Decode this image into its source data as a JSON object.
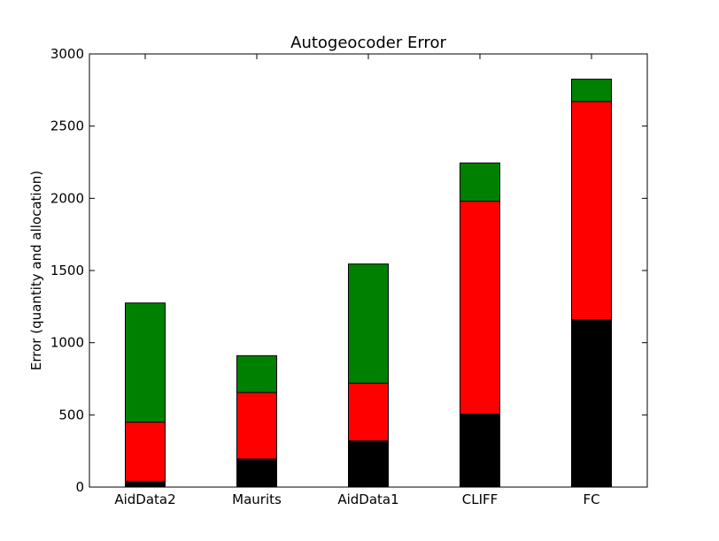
{
  "chart_data": {
    "type": "bar",
    "stacked": true,
    "title": "Autogeocoder Error",
    "xlabel": "",
    "ylabel": "Error (quantity and allocation)",
    "categories": [
      "AidData2",
      "Maurits",
      "AidData1",
      "CLIFF",
      "FC"
    ],
    "series": [
      {
        "color": "#000000",
        "values": [
          40,
          195,
          320,
          505,
          1160
        ]
      },
      {
        "color": "#ff0000",
        "values": [
          410,
          460,
          400,
          1475,
          1510
        ]
      },
      {
        "color": "#008000",
        "values": [
          825,
          255,
          825,
          265,
          155
        ]
      }
    ],
    "ylim": [
      0,
      3000
    ],
    "yticks": [
      0,
      500,
      1000,
      1500,
      2000,
      2500,
      3000
    ],
    "grid": false
  }
}
